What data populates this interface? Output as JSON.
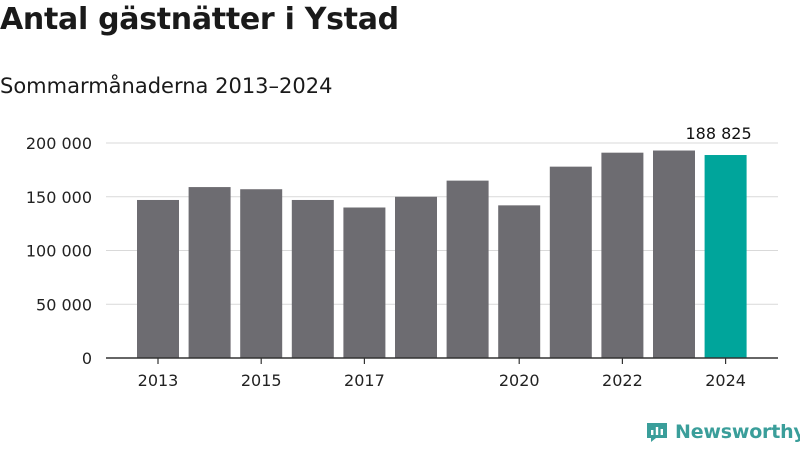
{
  "title": "Antal gästnätter i Ystad",
  "subtitle": "Sommarmånaderna 2013–2024",
  "brand": {
    "name": "Newsworthy",
    "color": "#3a9e9a"
  },
  "colors": {
    "bar": "#6d6c71",
    "highlight": "#00a59b",
    "grid": "#d9d9d9",
    "axis": "#333333"
  },
  "chart_data": {
    "type": "bar",
    "title": "Antal gästnätter i Ystad",
    "subtitle": "Sommarmånaderna 2013–2024",
    "categories": [
      "2013",
      "2014",
      "2015",
      "2016",
      "2017",
      "2018",
      "2019",
      "2020",
      "2021",
      "2022",
      "2023",
      "2024"
    ],
    "values": [
      147000,
      159000,
      157000,
      147000,
      140000,
      150000,
      165000,
      142000,
      178000,
      191000,
      193000,
      188825
    ],
    "x_tick_labels": [
      "2013",
      "2015",
      "2017",
      "2020",
      "2022",
      "2024"
    ],
    "y_tick_labels": [
      "0",
      "50 000",
      "100 000",
      "150 000",
      "200 000"
    ],
    "y_ticks": [
      0,
      50000,
      100000,
      150000,
      200000
    ],
    "ylim": [
      0,
      200000
    ],
    "grid": true,
    "highlight_index": 11,
    "annotation": {
      "index": 11,
      "text": "188 825"
    },
    "xlabel": "",
    "ylabel": ""
  }
}
